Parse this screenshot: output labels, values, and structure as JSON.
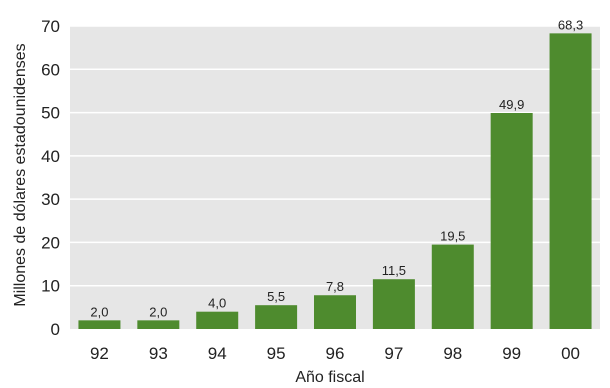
{
  "chart_data": {
    "type": "bar",
    "title": "",
    "xlabel": "Año fiscal",
    "ylabel": "Millones de dólares estadounidenses",
    "categories": [
      "92",
      "93",
      "94",
      "95",
      "96",
      "97",
      "98",
      "99",
      "00"
    ],
    "values": [
      2.0,
      2.0,
      4.0,
      5.5,
      7.8,
      11.5,
      19.5,
      49.9,
      68.3
    ],
    "value_labels": [
      "2,0",
      "2,0",
      "4,0",
      "5,5",
      "7,8",
      "11,5",
      "19,5",
      "49,9",
      "68,3"
    ],
    "ylim": [
      0,
      70
    ],
    "yticks": [
      0,
      10,
      20,
      30,
      40,
      50,
      60,
      70
    ],
    "ytick_labels": [
      "0",
      "10",
      "20",
      "30",
      "40",
      "50",
      "60",
      "70"
    ],
    "grid": true,
    "colors": {
      "bar": "#4e8b2e",
      "plot_background": "#e6e6e6",
      "grid": "#ffffff"
    }
  }
}
